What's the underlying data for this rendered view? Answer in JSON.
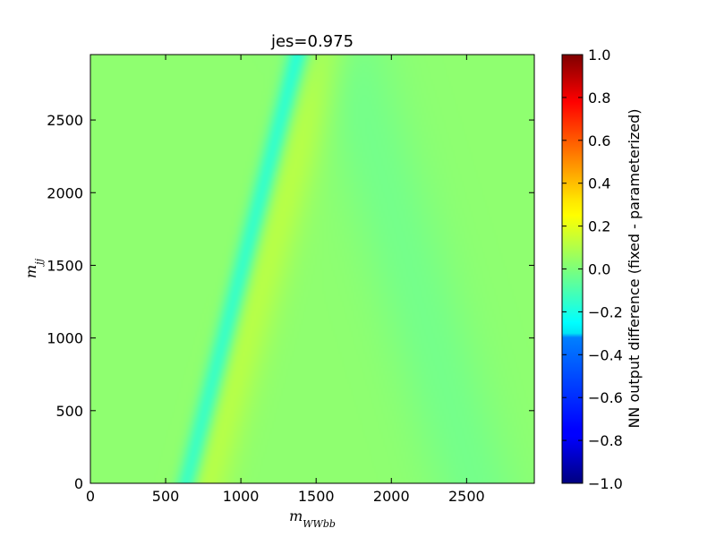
{
  "chart_data": {
    "type": "heatmap",
    "title": "jes=0.975",
    "xlabel": "m_{WWbb}",
    "ylabel": "m_{jj}",
    "xlim": [
      0,
      2950
    ],
    "ylim": [
      0,
      2950
    ],
    "x_ticks": [
      0,
      500,
      1000,
      1500,
      2000,
      2500
    ],
    "x_tick_labels": [
      "0",
      "500",
      "1000",
      "1500",
      "2000",
      "2500"
    ],
    "y_ticks": [
      0,
      500,
      1000,
      1500,
      2000,
      2500
    ],
    "y_tick_labels": [
      "0",
      "500",
      "1000",
      "1500",
      "2000",
      "2500"
    ],
    "colormap": "jet",
    "colorbar": {
      "label": "NN output difference (fixed - parameterized)",
      "range": [
        -1.0,
        1.0
      ],
      "ticks": [
        1.0,
        0.8,
        0.6,
        0.4,
        0.2,
        0.0,
        -0.2,
        -0.4,
        -0.6,
        -0.8,
        -1.0
      ],
      "tick_labels": [
        "1.0",
        "0.8",
        "0.6",
        "0.4",
        "0.2",
        "0.0",
        "−0.2",
        "−0.4",
        "−0.6",
        "−0.8",
        "−1.0"
      ]
    },
    "field": {
      "background": 0.03,
      "features": [
        {
          "name": "cyan band",
          "value": -0.17,
          "x_at_y0": 640,
          "x_at_ytop": 1380,
          "width": 75
        },
        {
          "name": "yellowish band",
          "value": 0.11,
          "x_at_y0": 760,
          "x_at_ytop": 1560,
          "width": 170
        },
        {
          "name": "faint lower-right band",
          "value": -0.02,
          "x_at_y0": 2550,
          "x_at_ytop": 1700,
          "width": 300
        }
      ]
    }
  }
}
